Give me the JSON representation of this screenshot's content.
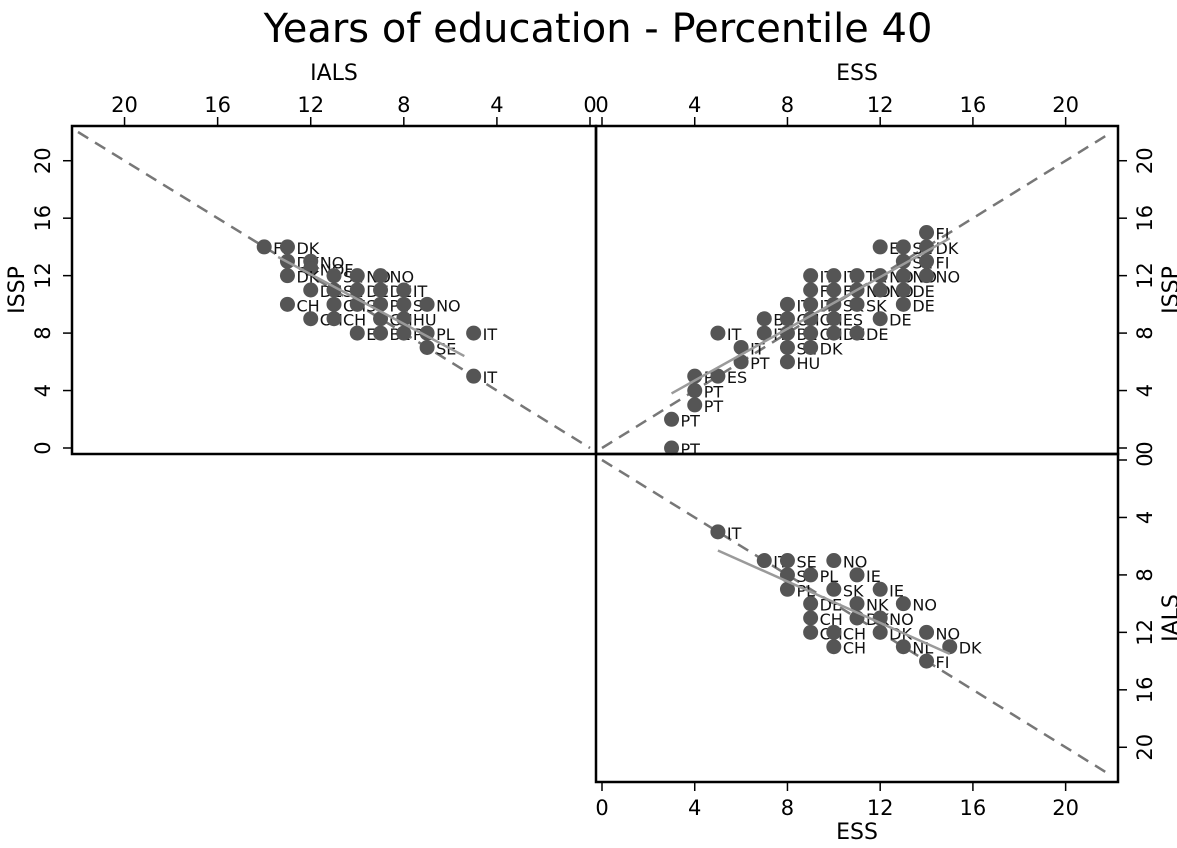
{
  "title": "Years of education - Percentile 40",
  "colors": {
    "point": "#555555",
    "fit_line": "#9a9a9a",
    "diagonal": "#777777",
    "frame": "#000000"
  },
  "chart_data": [
    {
      "type": "scatter",
      "panel": "top-left",
      "xlabel": "IALS",
      "ylabel": "ISSP",
      "xlim": [
        22,
        0
      ],
      "ylim": [
        0,
        22
      ],
      "xticks": [
        20,
        16,
        12,
        8,
        4,
        0
      ],
      "yticks": [
        0,
        4,
        8,
        12,
        16,
        20
      ],
      "x_axis_position": "top",
      "y_axis_position": "left",
      "diagonal_from": [
        22,
        22
      ],
      "diagonal_to": [
        0,
        0
      ],
      "fit_from": [
        13.4,
        13.3
      ],
      "fit_to": [
        5.4,
        6.4
      ],
      "points": [
        {
          "x": 14,
          "y": 14,
          "label": "FI"
        },
        {
          "x": 13,
          "y": 14,
          "label": "DK"
        },
        {
          "x": 13,
          "y": 13,
          "label": "DK"
        },
        {
          "x": 12,
          "y": 13,
          "label": "NO"
        },
        {
          "x": 12,
          "y": 12.5,
          "label": "NOF"
        },
        {
          "x": 13,
          "y": 12,
          "label": "DK"
        },
        {
          "x": 11,
          "y": 12,
          "label": "SE"
        },
        {
          "x": 10,
          "y": 12,
          "label": "NO"
        },
        {
          "x": 9,
          "y": 12,
          "label": "NO"
        },
        {
          "x": 12,
          "y": 11,
          "label": "DE"
        },
        {
          "x": 11,
          "y": 11,
          "label": "SE"
        },
        {
          "x": 10,
          "y": 11,
          "label": "DE"
        },
        {
          "x": 9,
          "y": 11,
          "label": "DE"
        },
        {
          "x": 8,
          "y": 11,
          "label": "IT"
        },
        {
          "x": 13,
          "y": 10,
          "label": "CH"
        },
        {
          "x": 11,
          "y": 10,
          "label": "CH"
        },
        {
          "x": 10,
          "y": 10,
          "label": "SI"
        },
        {
          "x": 9,
          "y": 10,
          "label": "PL"
        },
        {
          "x": 8,
          "y": 10,
          "label": "SI"
        },
        {
          "x": 7,
          "y": 10,
          "label": "NO"
        },
        {
          "x": 12,
          "y": 9,
          "label": "CH"
        },
        {
          "x": 11,
          "y": 9,
          "label": "CH"
        },
        {
          "x": 9,
          "y": 9,
          "label": "CH"
        },
        {
          "x": 8,
          "y": 9,
          "label": "HU"
        },
        {
          "x": 10,
          "y": 8,
          "label": "ES"
        },
        {
          "x": 9,
          "y": 8,
          "label": "BE"
        },
        {
          "x": 8,
          "y": 8,
          "label": "PL"
        },
        {
          "x": 7,
          "y": 8,
          "label": "PL"
        },
        {
          "x": 5,
          "y": 8,
          "label": "IT"
        },
        {
          "x": 7,
          "y": 7,
          "label": "SE"
        },
        {
          "x": 5,
          "y": 5,
          "label": "IT"
        }
      ]
    },
    {
      "type": "scatter",
      "panel": "top-right",
      "xlabel": "ESS",
      "ylabel": "ISSP",
      "xlim": [
        0,
        22
      ],
      "ylim": [
        0,
        22
      ],
      "xticks": [
        0,
        4,
        8,
        12,
        16,
        20
      ],
      "yticks": [
        0,
        4,
        8,
        12,
        16,
        20
      ],
      "x_axis_position": "top",
      "y_axis_position": "right",
      "diagonal_from": [
        0,
        0
      ],
      "diagonal_to": [
        22,
        22
      ],
      "fit_from": [
        3,
        3.8
      ],
      "fit_to": [
        15,
        14.6
      ],
      "points": [
        {
          "x": 3,
          "y": 0,
          "label": "PT"
        },
        {
          "x": 3,
          "y": 2,
          "label": "PT"
        },
        {
          "x": 4,
          "y": 3,
          "label": "PT"
        },
        {
          "x": 4,
          "y": 4,
          "label": "PT"
        },
        {
          "x": 4,
          "y": 5,
          "label": "PT"
        },
        {
          "x": 5,
          "y": 5,
          "label": "ES"
        },
        {
          "x": 6,
          "y": 6,
          "label": "PT"
        },
        {
          "x": 8,
          "y": 6,
          "label": "HU"
        },
        {
          "x": 5,
          "y": 8,
          "label": "IT"
        },
        {
          "x": 6,
          "y": 7,
          "label": "IT"
        },
        {
          "x": 7,
          "y": 8,
          "label": "IT"
        },
        {
          "x": 8,
          "y": 7,
          "label": "SE"
        },
        {
          "x": 9,
          "y": 7,
          "label": "DK"
        },
        {
          "x": 7,
          "y": 9,
          "label": "BE"
        },
        {
          "x": 8,
          "y": 8,
          "label": "BE"
        },
        {
          "x": 9,
          "y": 8,
          "label": "CH"
        },
        {
          "x": 10,
          "y": 8,
          "label": "DE"
        },
        {
          "x": 11,
          "y": 8,
          "label": "DE"
        },
        {
          "x": 8,
          "y": 9,
          "label": "CH"
        },
        {
          "x": 9,
          "y": 9,
          "label": "CH"
        },
        {
          "x": 10,
          "y": 9,
          "label": "ES"
        },
        {
          "x": 12,
          "y": 9,
          "label": "DE"
        },
        {
          "x": 8,
          "y": 10,
          "label": "IT"
        },
        {
          "x": 9,
          "y": 10,
          "label": "IT"
        },
        {
          "x": 10,
          "y": 10,
          "label": "SK"
        },
        {
          "x": 11,
          "y": 10,
          "label": "SK"
        },
        {
          "x": 13,
          "y": 10,
          "label": "DE"
        },
        {
          "x": 9,
          "y": 11,
          "label": "FI"
        },
        {
          "x": 10,
          "y": 11,
          "label": "FI"
        },
        {
          "x": 11,
          "y": 11,
          "label": "NO"
        },
        {
          "x": 12,
          "y": 11,
          "label": "NO"
        },
        {
          "x": 13,
          "y": 11,
          "label": "DE"
        },
        {
          "x": 9,
          "y": 12,
          "label": "IT"
        },
        {
          "x": 10,
          "y": 12,
          "label": "IT"
        },
        {
          "x": 11,
          "y": 12,
          "label": "TR"
        },
        {
          "x": 12,
          "y": 12,
          "label": "NO"
        },
        {
          "x": 13,
          "y": 12,
          "label": "NO"
        },
        {
          "x": 14,
          "y": 12,
          "label": "NO"
        },
        {
          "x": 13,
          "y": 13,
          "label": "SE"
        },
        {
          "x": 14,
          "y": 13,
          "label": "FI"
        },
        {
          "x": 12,
          "y": 14,
          "label": "ES"
        },
        {
          "x": 13,
          "y": 14,
          "label": "SE"
        },
        {
          "x": 14,
          "y": 14,
          "label": "DK"
        },
        {
          "x": 14,
          "y": 15,
          "label": "FI"
        }
      ]
    },
    {
      "type": "scatter",
      "panel": "bottom-right",
      "xlabel": "ESS",
      "ylabel": "IALS",
      "xlim": [
        0,
        22
      ],
      "ylim": [
        22,
        0
      ],
      "xticks": [
        0,
        4,
        8,
        12,
        16,
        20
      ],
      "yticks": [
        0,
        4,
        8,
        12,
        16,
        20
      ],
      "x_axis_position": "bottom",
      "y_axis_position": "right",
      "diagonal_from": [
        0,
        0
      ],
      "diagonal_to": [
        22,
        22
      ],
      "fit_from": [
        5,
        6.3
      ],
      "fit_to": [
        15,
        13.5
      ],
      "points": [
        {
          "x": 5,
          "y": 5,
          "label": "IT"
        },
        {
          "x": 7,
          "y": 7,
          "label": "IT"
        },
        {
          "x": 8,
          "y": 7,
          "label": "SE"
        },
        {
          "x": 10,
          "y": 7,
          "label": "NO"
        },
        {
          "x": 8,
          "y": 8,
          "label": "SI"
        },
        {
          "x": 9,
          "y": 8,
          "label": "PL"
        },
        {
          "x": 11,
          "y": 8,
          "label": "IE"
        },
        {
          "x": 8,
          "y": 9,
          "label": "PL"
        },
        {
          "x": 10,
          "y": 9,
          "label": "SK"
        },
        {
          "x": 12,
          "y": 9,
          "label": "IE"
        },
        {
          "x": 9,
          "y": 10,
          "label": "DE"
        },
        {
          "x": 11,
          "y": 10,
          "label": "NK"
        },
        {
          "x": 13,
          "y": 10,
          "label": "NO"
        },
        {
          "x": 9,
          "y": 11,
          "label": "CH"
        },
        {
          "x": 11,
          "y": 11,
          "label": "DK"
        },
        {
          "x": 12,
          "y": 11,
          "label": "NO"
        },
        {
          "x": 9,
          "y": 12,
          "label": "CH"
        },
        {
          "x": 10,
          "y": 12,
          "label": "CH"
        },
        {
          "x": 12,
          "y": 12,
          "label": "DK"
        },
        {
          "x": 14,
          "y": 12,
          "label": "NO"
        },
        {
          "x": 10,
          "y": 13,
          "label": "CH"
        },
        {
          "x": 13,
          "y": 13,
          "label": "NL"
        },
        {
          "x": 15,
          "y": 13,
          "label": "DK"
        },
        {
          "x": 14,
          "y": 14,
          "label": "FI"
        }
      ]
    }
  ]
}
